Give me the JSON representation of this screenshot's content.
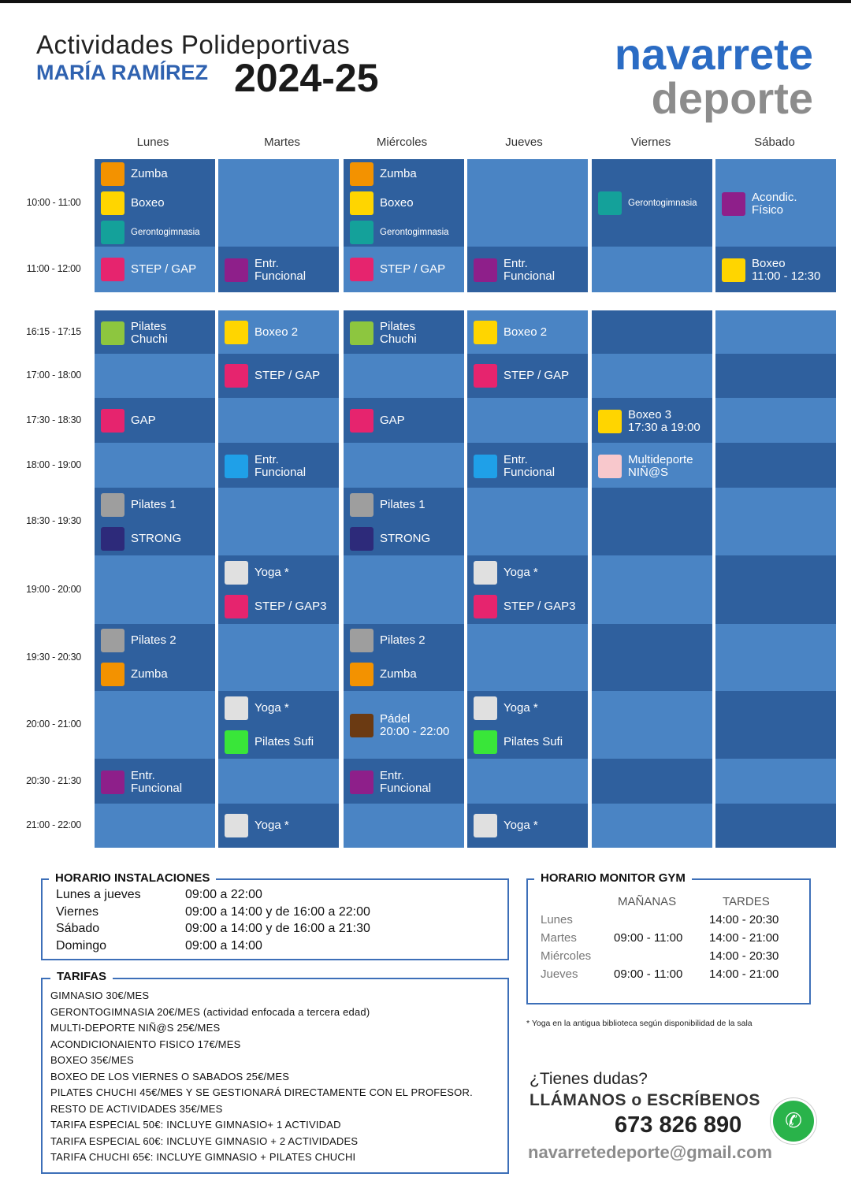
{
  "header": {
    "title_line1": "Actividades Polideportivas",
    "subtitle": "MARÍA RAMÍREZ",
    "season": "2024-25",
    "logo_top": "navarrete",
    "logo_bottom": "deporte"
  },
  "days": [
    "Lunes",
    "Martes",
    "Miércoles",
    "Jueves",
    "Viernes",
    "Sábado"
  ],
  "time_slots": [
    "10:00 - 11:00",
    "11:00 - 12:00",
    "16:15 - 17:15",
    "17:00 - 18:00",
    "17:30 - 18:30",
    "18:00 - 19:00",
    "18:30 - 19:30",
    "19:00 - 20:00",
    "19:30 - 20:30",
    "20:00 - 21:00",
    "20:30 - 21:30",
    "21:00 - 22:00"
  ],
  "colors": {
    "zumba": "#f39200",
    "boxeo": "#ffd500",
    "geronto": "#14a19a",
    "step": "#e6246e",
    "entr": "#8e1f8a",
    "pilates_chuchi": "#8dc63f",
    "pilates": "#9e9e9e",
    "strong": "#2d2a7a",
    "yoga": "#e0e0e0",
    "entr_blue": "#1fa0e8",
    "multideporte": "#f8c8cc",
    "pilates_sufi": "#39e639",
    "padel": "#6b3a12",
    "cell_light": "#4a84c4",
    "cell_dark": "#2f609e"
  },
  "schedule": {
    "r0": [
      [
        {
          "label": "Zumba",
          "color": "#f39200"
        },
        {
          "label": "Boxeo",
          "color": "#ffd500"
        },
        {
          "label": "Gerontogimnasia",
          "color": "#14a19a",
          "small": true
        }
      ],
      [],
      [
        {
          "label": "Zumba",
          "color": "#f39200"
        },
        {
          "label": "Boxeo",
          "color": "#ffd500"
        },
        {
          "label": "Gerontogimnasia",
          "color": "#14a19a",
          "small": true
        }
      ],
      [],
      [
        {
          "label": "Gerontogimnasia",
          "color": "#14a19a",
          "small": true
        }
      ],
      [
        {
          "label": "Acondic.\nFísico",
          "color": "#8e1f8a"
        }
      ]
    ],
    "r1": [
      [
        {
          "label": "STEP / GAP",
          "color": "#e6246e"
        }
      ],
      [
        {
          "label": "Entr.\nFuncional",
          "color": "#8e1f8a"
        }
      ],
      [
        {
          "label": "STEP / GAP",
          "color": "#e6246e"
        }
      ],
      [
        {
          "label": "Entr.\nFuncional",
          "color": "#8e1f8a"
        }
      ],
      [],
      [
        {
          "label": "Boxeo\n11:00 - 12:30",
          "color": "#ffd500"
        }
      ]
    ],
    "r2": [
      [
        {
          "label": "Pilates\nChuchi",
          "color": "#8dc63f"
        }
      ],
      [
        {
          "label": "Boxeo 2",
          "color": "#ffd500"
        }
      ],
      [
        {
          "label": "Pilates\nChuchi",
          "color": "#8dc63f"
        }
      ],
      [
        {
          "label": "Boxeo 2",
          "color": "#ffd500"
        }
      ],
      [],
      []
    ],
    "r3": [
      [],
      [
        {
          "label": "STEP / GAP",
          "color": "#e6246e"
        }
      ],
      [],
      [
        {
          "label": "STEP / GAP",
          "color": "#e6246e"
        }
      ],
      [],
      []
    ],
    "r4": [
      [
        {
          "label": "GAP",
          "color": "#e6246e"
        }
      ],
      [],
      [
        {
          "label": "GAP",
          "color": "#e6246e"
        }
      ],
      [],
      [
        {
          "label": "Boxeo 3\n17:30 a 19:00",
          "color": "#ffd500"
        }
      ],
      []
    ],
    "r5": [
      [],
      [
        {
          "label": "Entr.\nFuncional",
          "color": "#1fa0e8"
        }
      ],
      [],
      [
        {
          "label": "Entr.\nFuncional",
          "color": "#1fa0e8"
        }
      ],
      [
        {
          "label": "Multideporte\nNIÑ@S",
          "color": "#f8c8cc"
        }
      ],
      []
    ],
    "r6": [
      [
        {
          "label": "Pilates 1",
          "color": "#9e9e9e"
        },
        {
          "label": "STRONG",
          "color": "#2d2a7a"
        }
      ],
      [],
      [
        {
          "label": "Pilates 1",
          "color": "#9e9e9e"
        },
        {
          "label": "STRONG",
          "color": "#2d2a7a"
        }
      ],
      [],
      [],
      []
    ],
    "r7": [
      [],
      [
        {
          "label": "Yoga *",
          "color": "#e0e0e0"
        },
        {
          "label": "STEP / GAP3",
          "color": "#e6246e"
        }
      ],
      [],
      [
        {
          "label": "Yoga *",
          "color": "#e0e0e0"
        },
        {
          "label": "STEP / GAP3",
          "color": "#e6246e"
        }
      ],
      [],
      []
    ],
    "r8": [
      [
        {
          "label": "Pilates 2",
          "color": "#9e9e9e"
        },
        {
          "label": "Zumba",
          "color": "#f39200"
        }
      ],
      [],
      [
        {
          "label": "Pilates 2",
          "color": "#9e9e9e"
        },
        {
          "label": "Zumba",
          "color": "#f39200"
        }
      ],
      [],
      [],
      []
    ],
    "r9": [
      [],
      [
        {
          "label": "Yoga *",
          "color": "#e0e0e0"
        },
        {
          "label": "Pilates Sufi",
          "color": "#39e639"
        }
      ],
      [
        {
          "label": "Pádel\n20:00 - 22:00",
          "color": "#6b3a12"
        }
      ],
      [
        {
          "label": "Yoga *",
          "color": "#e0e0e0"
        },
        {
          "label": "Pilates Sufi",
          "color": "#39e639"
        }
      ],
      [],
      []
    ],
    "r10": [
      [
        {
          "label": "Entr.\nFuncional",
          "color": "#8e1f8a"
        }
      ],
      [],
      [
        {
          "label": "Entr.\nFuncional",
          "color": "#8e1f8a"
        }
      ],
      [],
      [],
      []
    ],
    "r11": [
      [],
      [
        {
          "label": "Yoga *",
          "color": "#e0e0e0"
        }
      ],
      [],
      [
        {
          "label": "Yoga *",
          "color": "#e0e0e0"
        }
      ],
      [],
      []
    ]
  },
  "horario": {
    "title": "HORARIO INSTALACIONES",
    "rows": [
      {
        "day": "Lunes a jueves",
        "hours": "09:00 a 22:00"
      },
      {
        "day": "Viernes",
        "hours": "09:00 a 14:00 y de 16:00 a 22:00"
      },
      {
        "day": "Sábado",
        "hours": "09:00 a 14:00 y de 16:00 a 21:30"
      },
      {
        "day": "Domingo",
        "hours": "09:00 a 14:00"
      }
    ]
  },
  "tarifas": {
    "title": "TARIFAS",
    "rows": [
      "GIMNASIO 30€/MES",
      "GERONTOGIMNASIA 20€/MES (actividad enfocada a tercera edad)",
      "MULTI-DEPORTE NIÑ@S 25€/MES",
      "ACONDICIONAIENTO FISICO 17€/MES",
      "BOXEO 35€/MES",
      "BOXEO DE LOS VIERNES O SABADOS 25€/MES",
      "PILATES CHUCHI 45€/MES Y SE GESTIONARÁ DIRECTAMENTE CON EL PROFESOR.",
      "RESTO DE ACTIVIDADES 35€/MES",
      "TARIFA ESPECIAL 50€: INCLUYE GIMNASIO+ 1 ACTIVIDAD",
      "TARIFA ESPECIAL 60€: INCLUYE GIMNASIO + 2 ACTIVIDADES",
      "TARIFA CHUCHI 65€: INCLUYE GIMNASIO + PILATES CHUCHI"
    ]
  },
  "gym": {
    "title": "HORARIO MONITOR GYM",
    "col_morning": "MAÑANAS",
    "col_afternoon": "TARDES",
    "rows": [
      {
        "day": "Lunes",
        "morning": "",
        "afternoon": "14:00 - 20:30"
      },
      {
        "day": "Martes",
        "morning": "09:00 - 11:00",
        "afternoon": "14:00 - 21:00"
      },
      {
        "day": "Miércoles",
        "morning": "",
        "afternoon": "14:00 - 20:30"
      },
      {
        "day": "Jueves",
        "morning": "09:00 - 11:00",
        "afternoon": "14:00 - 21:00"
      }
    ]
  },
  "footnote": "*  Yoga en la antigua biblioteca según disponibilidad de la sala",
  "contact": {
    "question": "¿Tienes dudas?",
    "cta": "LLÁMANOS o ESCRÍBENOS",
    "phone": "673 826 890",
    "email": "navarretedeporte@gmail.com",
    "whatsapp_icon": "whatsapp-icon"
  }
}
